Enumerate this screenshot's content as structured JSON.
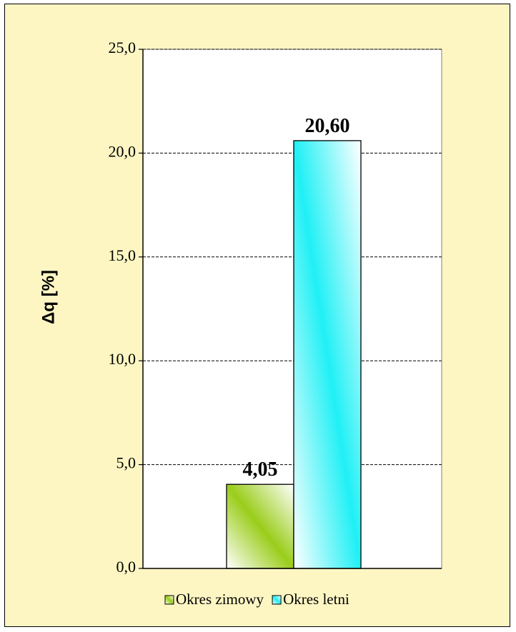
{
  "chart_data": {
    "type": "bar",
    "title": "",
    "xlabel": "",
    "ylabel": "Δq [%]",
    "ylim": [
      0,
      25
    ],
    "yticks": [
      0,
      5,
      10,
      15,
      20,
      25
    ],
    "ytick_labels": [
      "0,0",
      "5,0",
      "10,0",
      "15,0",
      "20,0",
      "25,0"
    ],
    "grid": true,
    "legend_position": "bottom",
    "series": [
      {
        "name": "Okres zimowy",
        "value": 4.05,
        "label": "4,05",
        "color": "#9acd1a"
      },
      {
        "name": "Okres letni",
        "value": 20.6,
        "label": "20,60",
        "color": "#1ff0f5"
      }
    ]
  },
  "colors": {
    "background": "#fdf6c3",
    "plot_background": "#ffffff"
  }
}
